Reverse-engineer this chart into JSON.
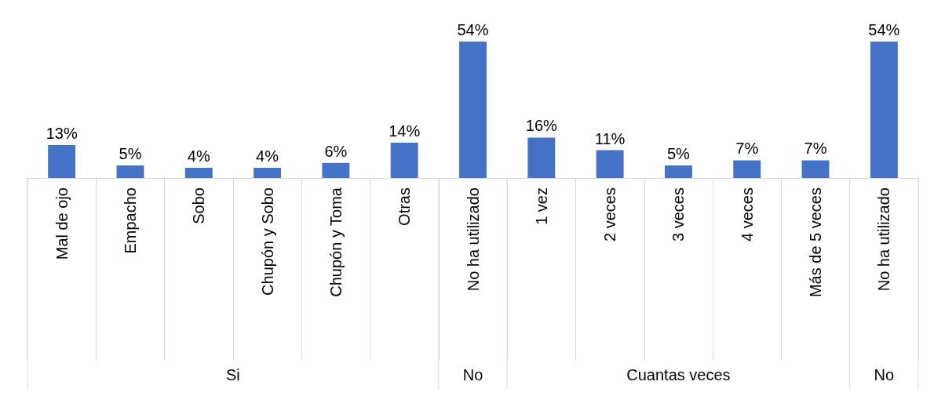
{
  "chart_data": {
    "type": "bar",
    "categories": [
      "Mal de ojo",
      "Empacho",
      "Sobo",
      "Chupón y Sobo",
      "Chupón y Toma",
      "Otras",
      "No ha utilizado",
      "1 vez",
      "2 veces",
      "3 veces",
      "4 veces",
      "Más de 5 veces",
      "No ha utilizado"
    ],
    "values": [
      13,
      5,
      4,
      4,
      6,
      14,
      54,
      16,
      11,
      5,
      7,
      7,
      54
    ],
    "value_labels": [
      "13%",
      "5%",
      "4%",
      "4%",
      "6%",
      "14%",
      "54%",
      "16%",
      "11%",
      "5%",
      "7%",
      "7%",
      "54%"
    ],
    "color": "#4472c4",
    "annotations": [
      "Si",
      "No",
      "Cuantas veces",
      "No"
    ]
  }
}
